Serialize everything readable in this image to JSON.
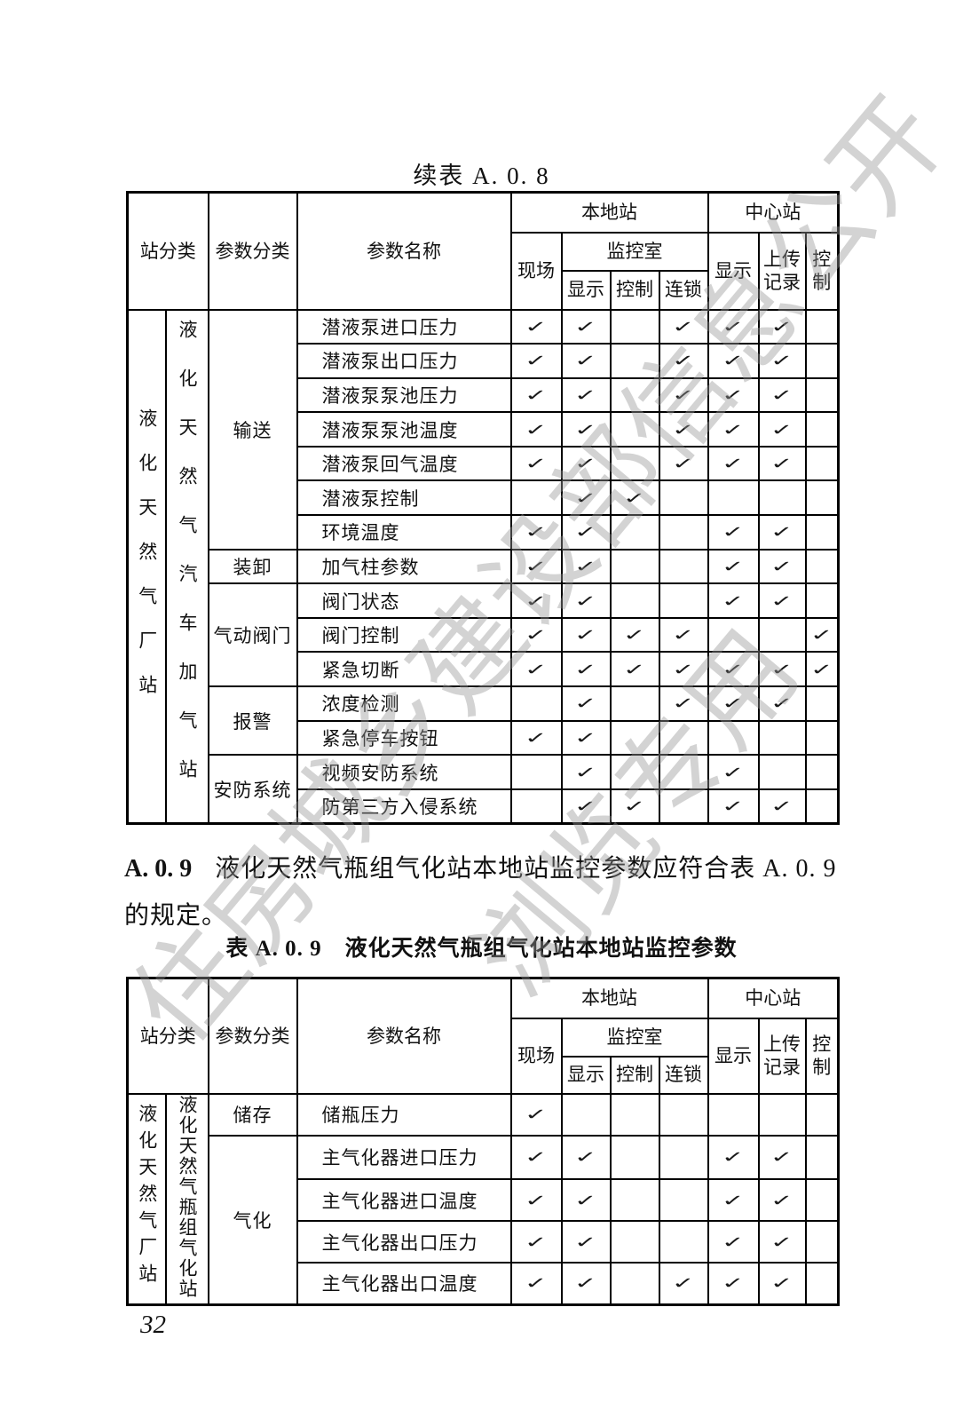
{
  "page": {
    "background": "#ffffff",
    "border_color": "#000000",
    "text_color": "#111111",
    "watermark_color": "#969696",
    "check_glyph": "✓",
    "page_number": "32"
  },
  "watermarks": {
    "line1": "住房城乡建设部信息公开",
    "line2": "浏览专用"
  },
  "table_header": {
    "station": "站分类",
    "category": "参数分类",
    "name": "参数名称",
    "local": "本地站",
    "center": "中心站",
    "onsite": "现场",
    "control_room": "监控室",
    "display": "显示",
    "control": "控制",
    "interlock": "连锁",
    "center_display": "显示",
    "upload_record": "上传记录",
    "center_control": "控制"
  },
  "mark_columns": [
    "现场",
    "监控室-显示",
    "监控室-控制",
    "监控室-连锁",
    "中心站-显示",
    "中心站-上传记录",
    "中心站-控制"
  ],
  "table1": {
    "title": "续表 A. 0. 8",
    "station_outer": "液化天然气厂站",
    "station_inner": "液化天然气汽车加气站",
    "groups": [
      {
        "category": "输送",
        "rows": [
          {
            "name": "潜液泵进口压力",
            "marks": [
              1,
              1,
              0,
              1,
              1,
              1,
              0
            ]
          },
          {
            "name": "潜液泵出口压力",
            "marks": [
              1,
              1,
              0,
              1,
              1,
              1,
              0
            ]
          },
          {
            "name": "潜液泵泵池压力",
            "marks": [
              1,
              1,
              0,
              1,
              1,
              1,
              0
            ]
          },
          {
            "name": "潜液泵泵池温度",
            "marks": [
              1,
              1,
              0,
              1,
              1,
              1,
              0
            ]
          },
          {
            "name": "潜液泵回气温度",
            "marks": [
              1,
              1,
              0,
              1,
              1,
              1,
              0
            ]
          },
          {
            "name": "潜液泵控制",
            "marks": [
              0,
              1,
              1,
              0,
              0,
              0,
              0
            ]
          },
          {
            "name": "环境温度",
            "marks": [
              1,
              1,
              0,
              0,
              1,
              1,
              0
            ]
          }
        ]
      },
      {
        "category": "装卸",
        "rows": [
          {
            "name": "加气柱参数",
            "marks": [
              1,
              1,
              0,
              0,
              1,
              1,
              0
            ]
          }
        ]
      },
      {
        "category": "气动阀门",
        "rows": [
          {
            "name": "阀门状态",
            "marks": [
              1,
              1,
              0,
              0,
              1,
              1,
              0
            ]
          },
          {
            "name": "阀门控制",
            "marks": [
              1,
              1,
              1,
              1,
              0,
              0,
              1
            ]
          },
          {
            "name": "紧急切断",
            "marks": [
              1,
              1,
              1,
              1,
              1,
              1,
              1
            ]
          }
        ]
      },
      {
        "category": "报警",
        "rows": [
          {
            "name": "浓度检测",
            "marks": [
              0,
              1,
              0,
              1,
              1,
              1,
              0
            ]
          },
          {
            "name": "紧急停车按钮",
            "marks": [
              1,
              1,
              0,
              0,
              0,
              0,
              0
            ]
          }
        ]
      },
      {
        "category": "安防系统",
        "rows": [
          {
            "name": "视频安防系统",
            "marks": [
              0,
              1,
              0,
              0,
              1,
              0,
              0
            ]
          },
          {
            "name": "防第三方入侵系统",
            "marks": [
              0,
              1,
              1,
              0,
              1,
              1,
              0
            ]
          }
        ]
      }
    ]
  },
  "section_a09": {
    "number": "A. 0. 9",
    "line1": "液化天然气瓶组气化站本地站监控参数应符合表 A. 0. 9",
    "line2": "的规定。"
  },
  "table2": {
    "caption": "表 A. 0. 9　液化天然气瓶组气化站本地站监控参数",
    "station_outer": "液化天然气厂站",
    "station_inner": "液化天然气瓶组气化站",
    "groups": [
      {
        "category": "储存",
        "rows": [
          {
            "name": "储瓶压力",
            "marks": [
              1,
              0,
              0,
              0,
              0,
              0,
              0
            ]
          }
        ]
      },
      {
        "category": "气化",
        "rows": [
          {
            "name": "主气化器进口压力",
            "marks": [
              1,
              1,
              0,
              0,
              1,
              1,
              0
            ]
          },
          {
            "name": "主气化器进口温度",
            "marks": [
              1,
              1,
              0,
              0,
              1,
              1,
              0
            ]
          },
          {
            "name": "主气化器出口压力",
            "marks": [
              1,
              1,
              0,
              0,
              1,
              1,
              0
            ]
          },
          {
            "name": "主气化器出口温度",
            "marks": [
              1,
              1,
              0,
              1,
              1,
              1,
              0
            ]
          }
        ]
      }
    ]
  }
}
